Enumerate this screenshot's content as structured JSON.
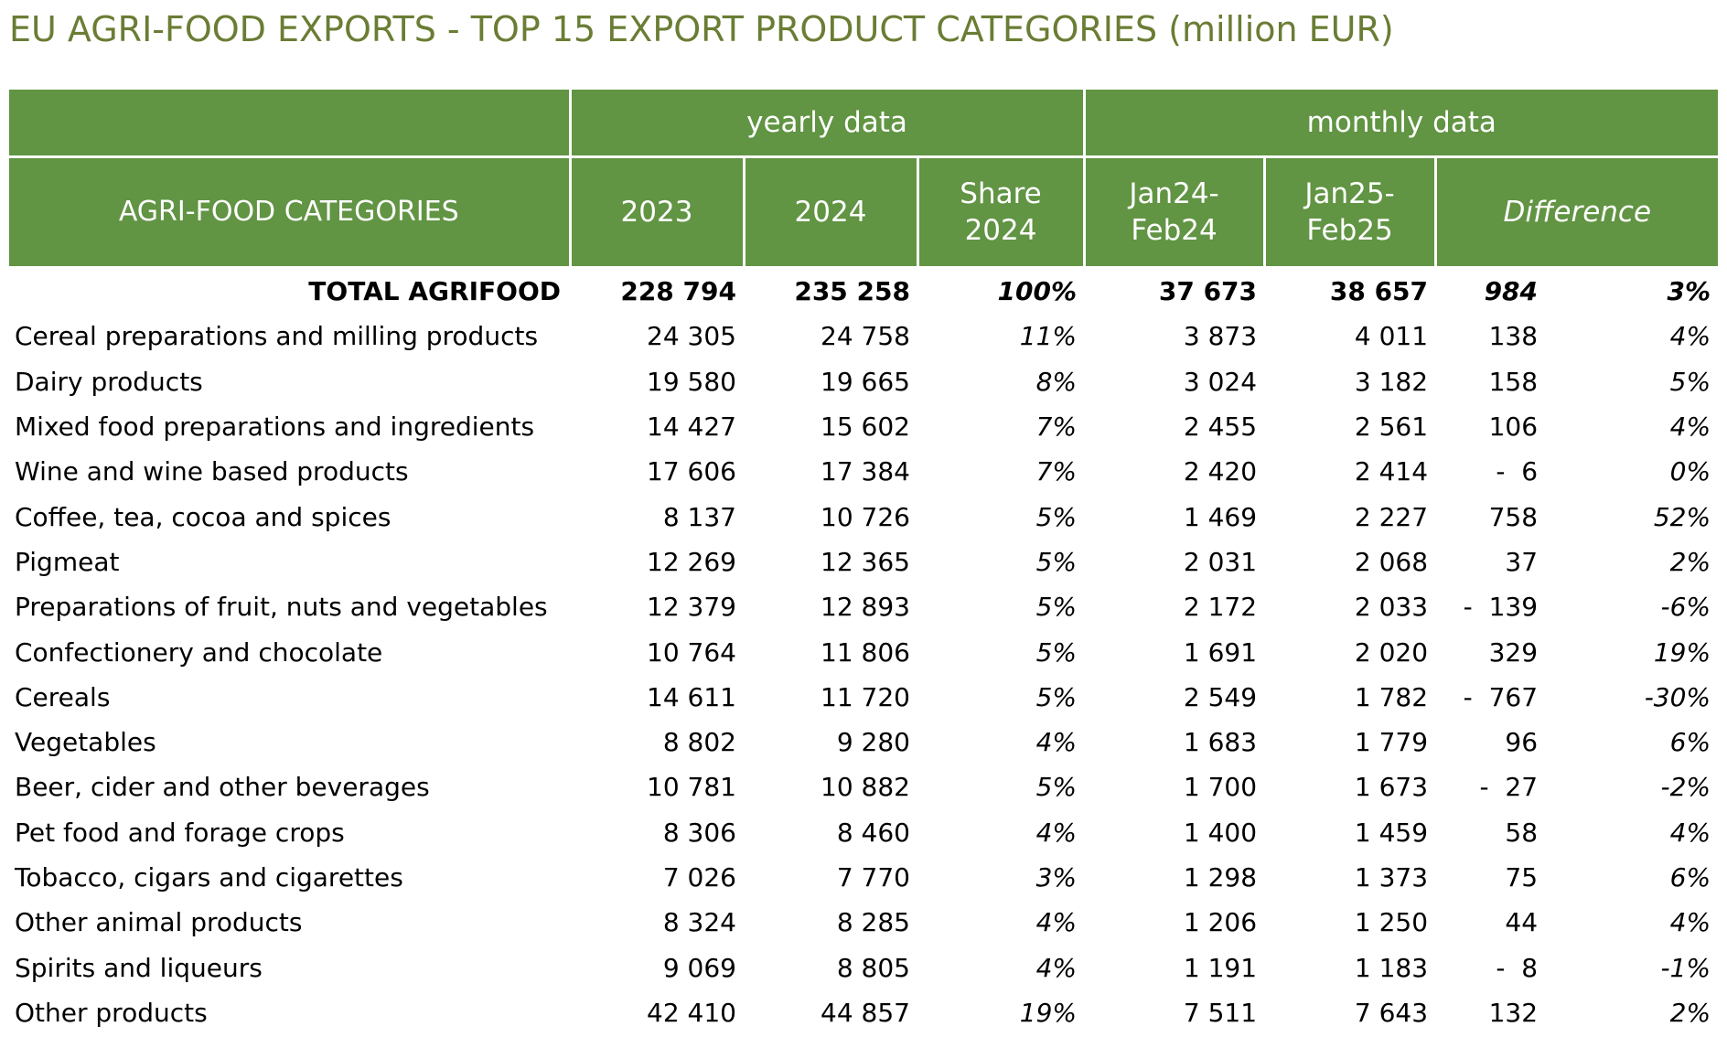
{
  "title": "EU AGRI-FOOD EXPORTS - TOP 15 EXPORT PRODUCT CATEGORIES (million EUR)",
  "colors": {
    "header_bg": "#619443",
    "title_color": "#6a7d34"
  },
  "header": {
    "yearly": "yearly data",
    "monthly": "monthly data",
    "categories": "AGRI-FOOD CATEGORIES",
    "y2023": "2023",
    "y2024": "2024",
    "share_line1": "Share",
    "share_line2": "2024",
    "m1_line1": "Jan24-",
    "m1_line2": "Feb24",
    "m2_line1": "Jan25-",
    "m2_line2": "Feb25",
    "difference": "Difference"
  },
  "total": {
    "name": "TOTAL AGRIFOOD",
    "y2023": "228 794",
    "y2024": "235 258",
    "share": "100%",
    "m1": "37 673",
    "m2": "38 657",
    "diff": "984",
    "diff_pct": "3%"
  },
  "rows": [
    {
      "name": "Cereal preparations and milling products",
      "y2023": "24 305",
      "y2024": "24 758",
      "share": "11%",
      "m1": "3 873",
      "m2": "4 011",
      "diff": "138",
      "diff_pct": "4%"
    },
    {
      "name": "Dairy products",
      "y2023": "19 580",
      "y2024": "19 665",
      "share": "8%",
      "m1": "3 024",
      "m2": "3 182",
      "diff": "158",
      "diff_pct": "5%"
    },
    {
      "name": "Mixed food preparations and ingredients",
      "y2023": "14 427",
      "y2024": "15 602",
      "share": "7%",
      "m1": "2 455",
      "m2": "2 561",
      "diff": "106",
      "diff_pct": "4%"
    },
    {
      "name": "Wine and wine based products",
      "y2023": "17 606",
      "y2024": "17 384",
      "share": "7%",
      "m1": "2 420",
      "m2": "2 414",
      "diff": "-  6",
      "diff_pct": "0%"
    },
    {
      "name": "Coffee, tea, cocoa and spices",
      "y2023": "8 137",
      "y2024": "10 726",
      "share": "5%",
      "m1": "1 469",
      "m2": "2 227",
      "diff": "758",
      "diff_pct": "52%"
    },
    {
      "name": "Pigmeat",
      "y2023": "12 269",
      "y2024": "12 365",
      "share": "5%",
      "m1": "2 031",
      "m2": "2 068",
      "diff": "37",
      "diff_pct": "2%"
    },
    {
      "name": "Preparations of fruit, nuts and vegetables",
      "y2023": "12 379",
      "y2024": "12 893",
      "share": "5%",
      "m1": "2 172",
      "m2": "2 033",
      "diff": "-  139",
      "diff_pct": "-6%"
    },
    {
      "name": "Confectionery and chocolate",
      "y2023": "10 764",
      "y2024": "11 806",
      "share": "5%",
      "m1": "1 691",
      "m2": "2 020",
      "diff": "329",
      "diff_pct": "19%"
    },
    {
      "name": "Cereals",
      "y2023": "14 611",
      "y2024": "11 720",
      "share": "5%",
      "m1": "2 549",
      "m2": "1 782",
      "diff": "-  767",
      "diff_pct": "-30%"
    },
    {
      "name": "Vegetables",
      "y2023": "8 802",
      "y2024": "9 280",
      "share": "4%",
      "m1": "1 683",
      "m2": "1 779",
      "diff": "96",
      "diff_pct": "6%"
    },
    {
      "name": "Beer, cider and other beverages",
      "y2023": "10 781",
      "y2024": "10 882",
      "share": "5%",
      "m1": "1 700",
      "m2": "1 673",
      "diff": "-  27",
      "diff_pct": "-2%"
    },
    {
      "name": "Pet food and forage crops",
      "y2023": "8 306",
      "y2024": "8 460",
      "share": "4%",
      "m1": "1 400",
      "m2": "1 459",
      "diff": "58",
      "diff_pct": "4%"
    },
    {
      "name": "Tobacco, cigars and cigarettes",
      "y2023": "7 026",
      "y2024": "7 770",
      "share": "3%",
      "m1": "1 298",
      "m2": "1 373",
      "diff": "75",
      "diff_pct": "6%"
    },
    {
      "name": "Other animal products",
      "y2023": "8 324",
      "y2024": "8 285",
      "share": "4%",
      "m1": "1 206",
      "m2": "1 250",
      "diff": "44",
      "diff_pct": "4%"
    },
    {
      "name": "Spirits and liqueurs",
      "y2023": "9 069",
      "y2024": "8 805",
      "share": "4%",
      "m1": "1 191",
      "m2": "1 183",
      "diff": "-  8",
      "diff_pct": "-1%"
    },
    {
      "name": "Other products",
      "y2023": "42 410",
      "y2024": "44 857",
      "share": "19%",
      "m1": "7 511",
      "m2": "7 643",
      "diff": "132",
      "diff_pct": "2%"
    }
  ]
}
